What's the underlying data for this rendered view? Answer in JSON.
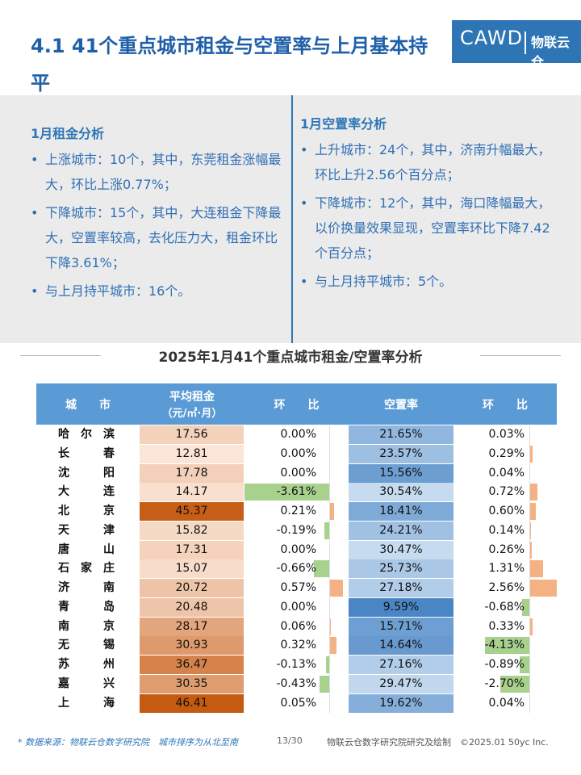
{
  "header": {
    "title": "4.1 41个重点城市租金与空置率与上月基本持平",
    "logo": "CAWD",
    "logo_cn": "物联云仓"
  },
  "left": {
    "heading": "1月租金分析",
    "items": [
      "上涨城市：10个，其中，东莞租金涨幅最大，环比上涨0.77%；",
      "下降城市：15个，其中，大连租金下降最大，空置率较高，去化压力大，租金环比下降3.61%；",
      "与上月持平城市：16个。"
    ]
  },
  "right": {
    "heading": "1月空置率分析",
    "items": [
      "上升城市：24个，其中，济南升幅最大，环比上升2.56个百分点；",
      "下降城市：12个，其中，海口降幅最大，以价换量效果显现，空置率环比下降7.42个百分点；",
      "与上月持平城市：5个。"
    ]
  },
  "table": {
    "title": "2025年1月41个重点城市租金/空置率分析",
    "headers": [
      "城市",
      "平均租金",
      "（元/㎡·月）",
      "环比",
      "空置率",
      "环比"
    ],
    "rows": [
      [
        "哈尔滨",
        "17.56",
        "0.00%",
        "21.65%",
        "0.03%"
      ],
      [
        "长春",
        "12.81",
        "0.00%",
        "23.57%",
        "0.29%"
      ],
      [
        "沈阳",
        "17.78",
        "0.00%",
        "15.56%",
        "0.04%"
      ],
      [
        "大连",
        "14.17",
        "-3.61%",
        "30.54%",
        "0.72%"
      ],
      [
        "北京",
        "45.37",
        "0.21%",
        "18.41%",
        "0.60%"
      ],
      [
        "天津",
        "15.82",
        "-0.19%",
        "24.21%",
        "0.14%"
      ],
      [
        "唐山",
        "17.31",
        "0.00%",
        "30.47%",
        "0.26%"
      ],
      [
        "石家庄",
        "15.07",
        "-0.66%",
        "25.73%",
        "1.31%"
      ],
      [
        "济南",
        "20.72",
        "0.57%",
        "27.18%",
        "2.56%"
      ],
      [
        "青岛",
        "20.48",
        "0.00%",
        "9.59%",
        "-0.68%"
      ],
      [
        "南京",
        "28.17",
        "0.06%",
        "15.71%",
        "0.33%"
      ],
      [
        "无锡",
        "30.93",
        "0.32%",
        "14.64%",
        "-4.13%"
      ],
      [
        "苏州",
        "36.47",
        "-0.13%",
        "27.16%",
        "-0.89%"
      ],
      [
        "嘉兴",
        "30.35",
        "-0.43%",
        "29.47%",
        "-2.70%"
      ],
      [
        "上海",
        "46.41",
        "0.05%",
        "19.62%",
        "0.04%"
      ]
    ]
  },
  "footer": {
    "source": "* 数据来源：物联云仓数字研究院　城市排序为从北至南",
    "page": "13/30",
    "credit": "物联云仓数字研究院研究及绘制　©2025.01 50yc Inc."
  }
}
